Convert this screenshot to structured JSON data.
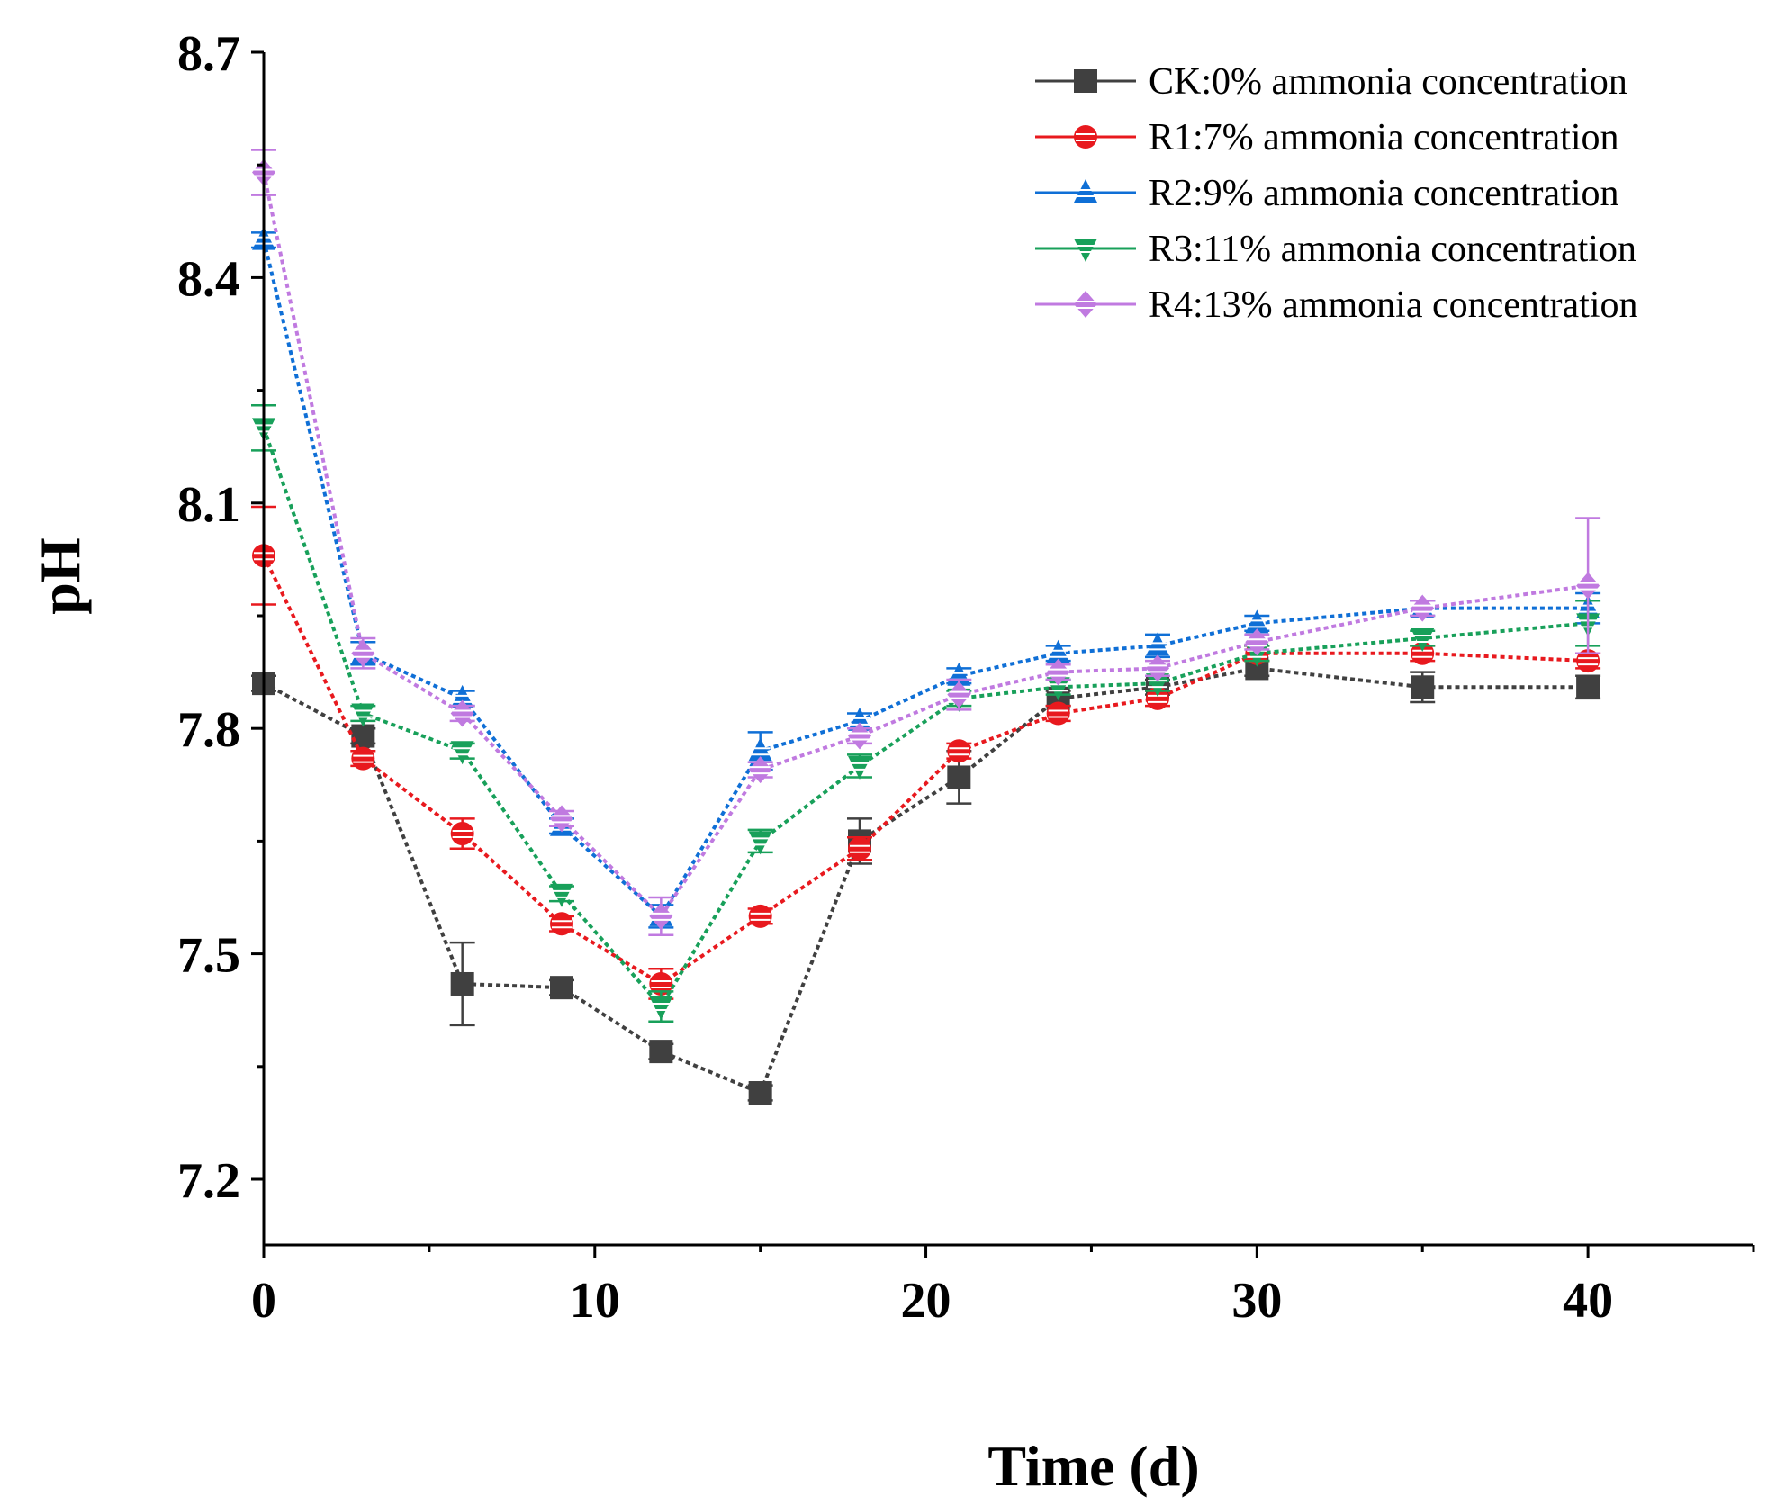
{
  "chart_data": {
    "type": "line",
    "title": "",
    "xlabel": "Time (d)",
    "ylabel": "pH",
    "xlim": [
      0,
      45
    ],
    "ylim": [
      7.1,
      8.7
    ],
    "xticks": [
      0,
      10,
      20,
      30,
      40
    ],
    "xtick_labels": [
      "0",
      "10",
      "20",
      "30",
      "40"
    ],
    "yticks": [
      7.2,
      7.5,
      7.8,
      8.1,
      8.4,
      8.7
    ],
    "ytick_labels": [
      "7.2",
      "7.5",
      "7.8",
      "8.1",
      "8.4",
      "8.7"
    ],
    "grid": false,
    "legend_position": "top-right",
    "x": [
      0,
      3,
      6,
      9,
      12,
      15,
      18,
      21,
      24,
      27,
      30,
      35,
      40
    ],
    "series": [
      {
        "name": "CK:0% ammonia concentration",
        "color": "#404040",
        "marker": "square",
        "values": [
          7.86,
          7.79,
          7.46,
          7.455,
          7.37,
          7.315,
          7.65,
          7.735,
          7.84,
          7.855,
          7.88,
          7.855,
          7.855
        ],
        "errors": [
          0.01,
          0.01,
          0.055,
          0.01,
          0.01,
          0.01,
          0.03,
          0.035,
          0.01,
          0.01,
          0.01,
          0.02,
          0.015
        ]
      },
      {
        "name": "R1:7% ammonia concentration",
        "color": "#e8191e",
        "marker": "circle",
        "values": [
          8.03,
          7.76,
          7.66,
          7.54,
          7.46,
          7.55,
          7.64,
          7.77,
          7.82,
          7.84,
          7.9,
          7.9,
          7.89
        ],
        "errors": [
          0.065,
          0.01,
          0.02,
          0.01,
          0.02,
          0.01,
          0.015,
          0.01,
          0.01,
          0.01,
          0.01,
          0.01,
          0.01
        ]
      },
      {
        "name": "R2:9% ammonia concentration",
        "color": "#0f6fd6",
        "marker": "triangle-up",
        "values": [
          8.45,
          7.9,
          7.84,
          7.67,
          7.55,
          7.77,
          7.81,
          7.87,
          7.9,
          7.91,
          7.94,
          7.96,
          7.96
        ],
        "errors": [
          0.01,
          0.015,
          0.01,
          0.01,
          0.015,
          0.025,
          0.01,
          0.01,
          0.01,
          0.015,
          0.01,
          0.01,
          0.02
        ]
      },
      {
        "name": "R3:11% ammonia concentration",
        "color": "#18a05a",
        "marker": "triangle-down",
        "values": [
          8.2,
          7.82,
          7.77,
          7.58,
          7.43,
          7.65,
          7.75,
          7.84,
          7.855,
          7.86,
          7.9,
          7.92,
          7.94
        ],
        "errors": [
          0.03,
          0.01,
          0.01,
          0.01,
          0.02,
          0.015,
          0.015,
          0.01,
          0.01,
          0.01,
          0.01,
          0.01,
          0.03
        ]
      },
      {
        "name": "R4:13% ammonia concentration",
        "color": "#c07ae0",
        "marker": "diamond",
        "values": [
          8.54,
          7.9,
          7.82,
          7.68,
          7.55,
          7.745,
          7.79,
          7.845,
          7.875,
          7.88,
          7.915,
          7.96,
          7.99
        ],
        "errors": [
          0.03,
          0.02,
          0.01,
          0.01,
          0.025,
          0.01,
          0.01,
          0.02,
          0.01,
          0.01,
          0.01,
          0.01,
          0.09
        ]
      }
    ]
  }
}
